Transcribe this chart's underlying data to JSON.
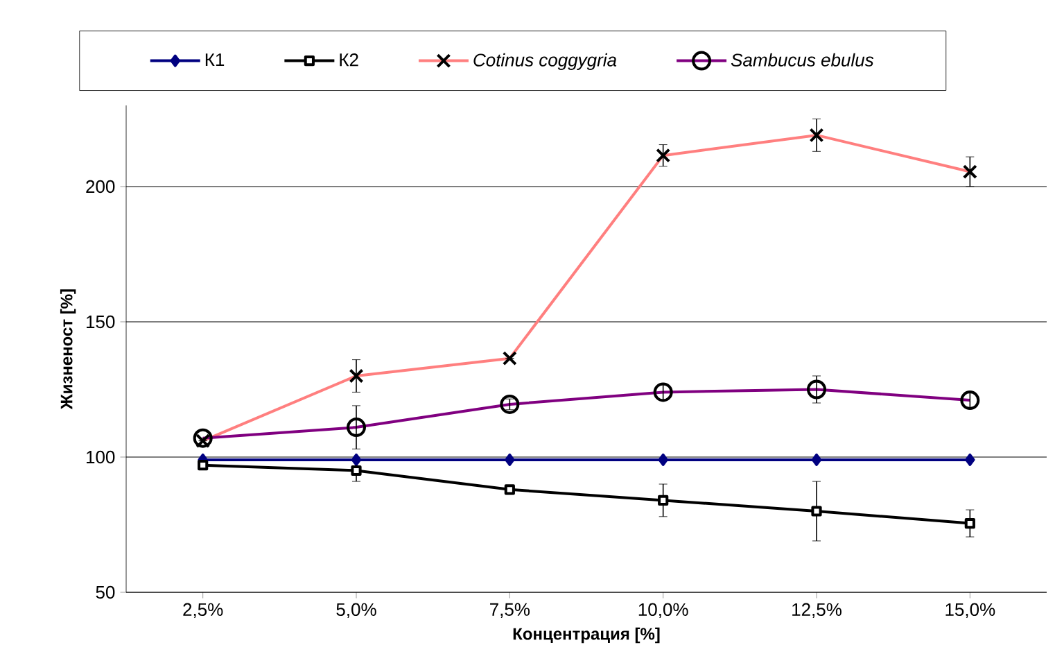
{
  "chart_data": {
    "type": "line",
    "xlabel": "Концентрация [%]",
    "ylabel": "Жизненост  [%]",
    "categories": [
      "2,5%",
      "5,0%",
      "7,5%",
      "10,0%",
      "12,5%",
      "15,0%"
    ],
    "ylim": [
      50,
      230
    ],
    "yticks": [
      50,
      100,
      150,
      200
    ],
    "grid": "y",
    "legend": "top",
    "series": [
      {
        "name": "К1",
        "color": "#000080",
        "marker": "diamond",
        "values": [
          99,
          99,
          99,
          99,
          99,
          99
        ]
      },
      {
        "name": "К2",
        "color": "#000000",
        "marker": "square",
        "values": [
          97,
          95,
          88,
          84,
          80,
          75.5
        ],
        "errors": [
          null,
          4,
          null,
          6,
          11,
          5
        ]
      },
      {
        "name": "*Cotinus coggygria*",
        "color": "#ff7f7f",
        "marker": "cross",
        "values": [
          106,
          130,
          136.5,
          211.5,
          219,
          205.5
        ],
        "errors": [
          null,
          6,
          null,
          4,
          6,
          5.5
        ]
      },
      {
        "name": "*Sambucus ebulus*",
        "color": "#800080",
        "marker": "circle",
        "values": [
          107,
          111,
          119.5,
          124,
          125,
          121
        ],
        "errors": [
          null,
          8,
          2,
          3,
          5,
          3
        ]
      }
    ]
  }
}
